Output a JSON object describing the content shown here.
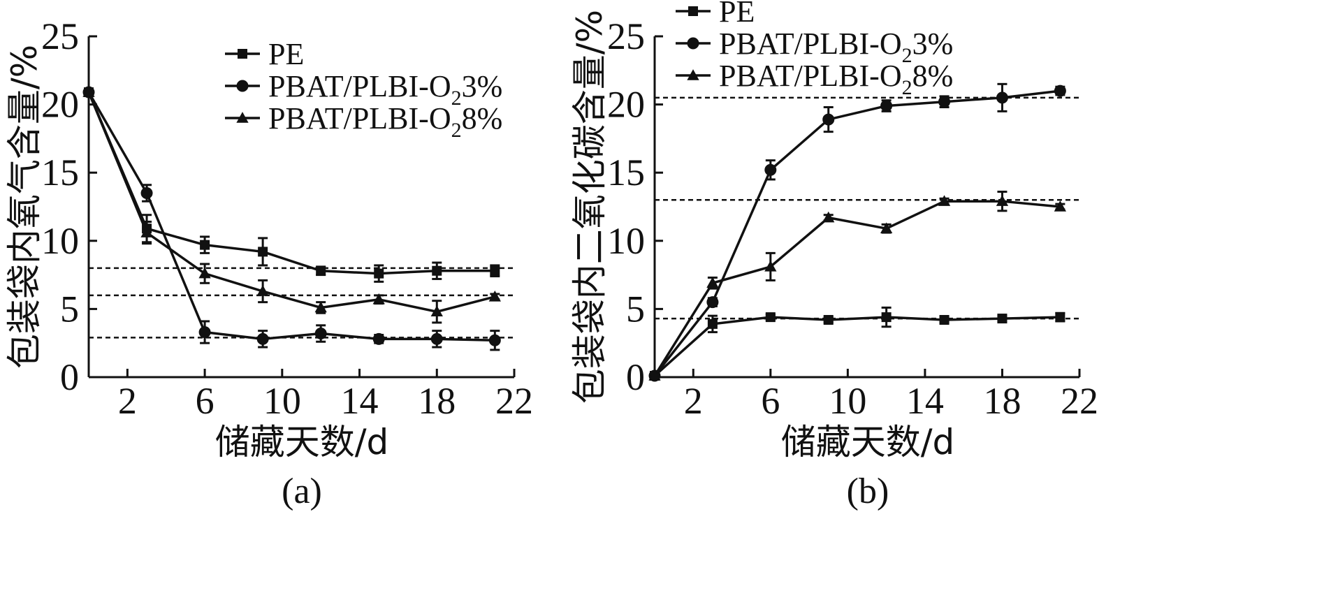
{
  "chart_data": [
    {
      "type": "line",
      "panel_label": "(a)",
      "xlabel": "储藏天数/d",
      "ylabel": "包装袋内氧气含量/%",
      "xlim": [
        0,
        22
      ],
      "ylim": [
        0,
        25
      ],
      "xticks": [
        2,
        6,
        10,
        14,
        18,
        22
      ],
      "yticks": [
        0,
        5,
        10,
        15,
        20,
        25
      ],
      "x": [
        0,
        3,
        6,
        9,
        12,
        15,
        18,
        21
      ],
      "legend_position": "top-right",
      "legend": [
        {
          "marker": "square",
          "base": "PE",
          "sub": "",
          "tail": ""
        },
        {
          "marker": "circle",
          "base": "PBAT/PLBI-O",
          "sub": "2",
          "tail": "3%"
        },
        {
          "marker": "triangle",
          "base": "PBAT/PLBI-O",
          "sub": "2",
          "tail": "8%"
        }
      ],
      "series": [
        {
          "name": "PE",
          "marker": "square",
          "values": [
            20.9,
            10.9,
            9.7,
            9.2,
            7.8,
            7.6,
            7.8,
            7.8
          ],
          "errors": [
            0.2,
            1.0,
            0.6,
            1.0,
            0.3,
            0.6,
            0.6,
            0.4
          ]
        },
        {
          "name": "PBAT/PLBI-O₂3%",
          "marker": "circle",
          "values": [
            20.9,
            13.5,
            3.3,
            2.8,
            3.2,
            2.8,
            2.8,
            2.7
          ],
          "errors": [
            0.2,
            0.6,
            0.8,
            0.6,
            0.6,
            0.3,
            0.6,
            0.7
          ]
        },
        {
          "name": "PBAT/PLBI-O₂8%",
          "marker": "triangle",
          "values": [
            20.9,
            10.6,
            7.6,
            6.3,
            5.1,
            5.7,
            4.8,
            5.9
          ],
          "errors": [
            0.2,
            0.8,
            0.7,
            0.8,
            0.4,
            0.3,
            0.8,
            0.2
          ]
        }
      ],
      "reference_lines": [
        8.0,
        6.0,
        2.9
      ]
    },
    {
      "type": "line",
      "panel_label": "(b)",
      "xlabel": "储藏天数/d",
      "ylabel": "包装袋内二氧化碳含量/%",
      "xlim": [
        0,
        22
      ],
      "ylim": [
        0,
        25
      ],
      "xticks": [
        2,
        6,
        10,
        14,
        18,
        22
      ],
      "yticks": [
        0,
        5,
        10,
        15,
        20,
        25
      ],
      "x": [
        0,
        3,
        6,
        9,
        12,
        15,
        18,
        21
      ],
      "legend_position": "top-left",
      "legend": [
        {
          "marker": "square",
          "base": "PE",
          "sub": "",
          "tail": ""
        },
        {
          "marker": "circle",
          "base": "PBAT/PLBI-O",
          "sub": "2",
          "tail": "3%"
        },
        {
          "marker": "triangle",
          "base": "PBAT/PLBI-O",
          "sub": "2",
          "tail": "8%"
        }
      ],
      "series": [
        {
          "name": "PE",
          "marker": "square",
          "values": [
            0.1,
            3.9,
            4.4,
            4.2,
            4.4,
            4.2,
            4.3,
            4.4
          ],
          "errors": [
            0.1,
            0.6,
            0.2,
            0.2,
            0.7,
            0.2,
            0.2,
            0.3
          ]
        },
        {
          "name": "PBAT/PLBI-O₂3%",
          "marker": "circle",
          "values": [
            0.1,
            5.5,
            15.2,
            18.9,
            19.9,
            20.2,
            20.5,
            21.0
          ],
          "errors": [
            0.1,
            0.3,
            0.7,
            0.9,
            0.4,
            0.4,
            1.0,
            0.3
          ]
        },
        {
          "name": "PBAT/PLBI-O₂8%",
          "marker": "triangle",
          "values": [
            0.1,
            6.9,
            8.1,
            11.7,
            10.9,
            12.9,
            12.9,
            12.5
          ],
          "errors": [
            0.1,
            0.4,
            1.0,
            0.2,
            0.3,
            0.2,
            0.7,
            0.2
          ]
        }
      ],
      "reference_lines": [
        20.5,
        13.0,
        4.3
      ]
    }
  ]
}
